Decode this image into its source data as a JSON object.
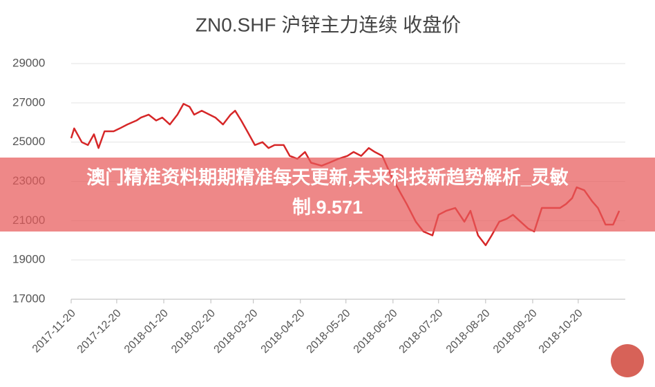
{
  "chart_data": {
    "type": "line",
    "title": "ZN0.SHF 沪锌主力连续 收盘价",
    "annotation": "澳门精准资料期期精准每天更新,未来科技新趋势解析_灵敏制.9.571",
    "x": [
      "2017-11-20",
      "2017-11-22",
      "2017-11-27",
      "2017-12-01",
      "2017-12-05",
      "2017-12-08",
      "2017-12-12",
      "2017-12-18",
      "2017-12-22",
      "2017-12-27",
      "2018-01-02",
      "2018-01-05",
      "2018-01-10",
      "2018-01-15",
      "2018-01-19",
      "2018-01-24",
      "2018-01-29",
      "2018-02-02",
      "2018-02-06",
      "2018-02-09",
      "2018-02-14",
      "2018-02-23",
      "2018-02-28",
      "2018-03-05",
      "2018-03-08",
      "2018-03-12",
      "2018-03-16",
      "2018-03-21",
      "2018-03-26",
      "2018-03-30",
      "2018-04-03",
      "2018-04-09",
      "2018-04-13",
      "2018-04-18",
      "2018-04-23",
      "2018-04-27",
      "2018-05-04",
      "2018-05-09",
      "2018-05-15",
      "2018-05-21",
      "2018-05-25",
      "2018-05-30",
      "2018-06-04",
      "2018-06-08",
      "2018-06-13",
      "2018-06-19",
      "2018-06-25",
      "2018-06-29",
      "2018-07-05",
      "2018-07-10",
      "2018-07-16",
      "2018-07-20",
      "2018-07-25",
      "2018-07-31",
      "2018-08-06",
      "2018-08-10",
      "2018-08-15",
      "2018-08-20",
      "2018-08-24",
      "2018-08-29",
      "2018-09-03",
      "2018-09-07",
      "2018-09-12",
      "2018-09-17",
      "2018-09-21",
      "2018-09-26",
      "2018-10-08",
      "2018-10-12",
      "2018-10-16",
      "2018-10-19",
      "2018-10-24",
      "2018-10-29",
      "2018-11-02",
      "2018-11-07",
      "2018-11-12",
      "2018-11-16"
    ],
    "series": [
      {
        "color": "#d62728",
        "values": [
          25200,
          25700,
          25000,
          24850,
          25400,
          24700,
          25550,
          25550,
          25700,
          25900,
          26100,
          26250,
          26400,
          26100,
          26250,
          25900,
          26400,
          26950,
          26800,
          26400,
          26600,
          26250,
          25900,
          26400,
          26600,
          26100,
          25550,
          24850,
          25000,
          24700,
          24850,
          24850,
          24300,
          24150,
          24500,
          23950,
          23800,
          23950,
          24150,
          24300,
          24500,
          24300,
          24700,
          24500,
          24300,
          23250,
          22400,
          21850,
          20950,
          20450,
          20250,
          21300,
          21500,
          21650,
          20950,
          21500,
          20250,
          19750,
          20250,
          20950,
          21100,
          21300,
          20950,
          20600,
          20450,
          21650,
          21650,
          21850,
          22150,
          22700,
          22550,
          22000,
          21650,
          20800,
          20800,
          21500
        ]
      }
    ],
    "xlim": [
      "2017-11-20",
      "2018-11-20"
    ],
    "xticks": [
      "2017-11-20",
      "2017-12-20",
      "2018-01-20",
      "2018-02-20",
      "2018-03-20",
      "2018-04-20",
      "2018-05-20",
      "2018-06-20",
      "2018-07-20",
      "2018-08-20",
      "2018-09-20",
      "2018-10-20"
    ],
    "ylim": [
      17000,
      29000
    ],
    "yticks": [
      17000,
      19000,
      21000,
      23000,
      25000,
      27000,
      29000
    ],
    "grid": true
  }
}
